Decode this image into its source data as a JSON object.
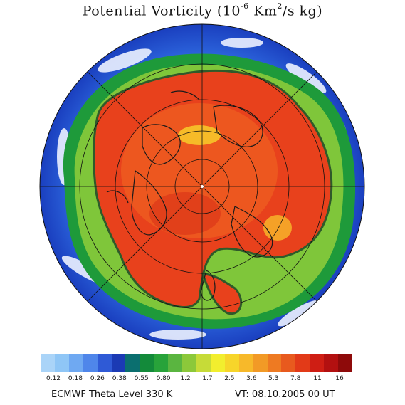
{
  "title": {
    "prefix": "Potential Vorticity (10",
    "exponent": "-6",
    "middle": " Km",
    "unit_exponent": "2",
    "suffix": "/s kg)"
  },
  "colorbar": {
    "colors": [
      "#aad4f8",
      "#8fc6f6",
      "#6fa9f2",
      "#4f86ea",
      "#2f5ad6",
      "#1b3ab4",
      "#0b6f6f",
      "#138a3a",
      "#28a33a",
      "#5ab540",
      "#8cc83a",
      "#c6db38",
      "#f2ee2e",
      "#f7d52a",
      "#f7b92a",
      "#f29a26",
      "#ee7a22",
      "#e85a1e",
      "#e23a18",
      "#cf1e14",
      "#b31010",
      "#8e0a0a"
    ],
    "tick_labels": [
      "0.12",
      "0.18",
      "0.26",
      "0.38",
      "0.55",
      "0.80",
      "1.2",
      "1.7",
      "2.5",
      "3.6",
      "5.3",
      "7.8",
      "11",
      "16"
    ]
  },
  "footer": {
    "level": "ECMWF Theta Level 330 K",
    "valid_time": "VT: 08.10.2005 00 UT"
  },
  "map": {
    "projection": "north-polar-stereographic",
    "ocean_colors": [
      "#1a3fbf",
      "#2f6ae0",
      "#f4f6ff",
      "#1e9a3a",
      "#7fc63a"
    ],
    "polar_vortex_colors": [
      "#e8411c",
      "#f06a23",
      "#f29a26",
      "#d62a16"
    ],
    "contour_color": "#2f5a2a",
    "coast_color": "#1a1a1a"
  }
}
